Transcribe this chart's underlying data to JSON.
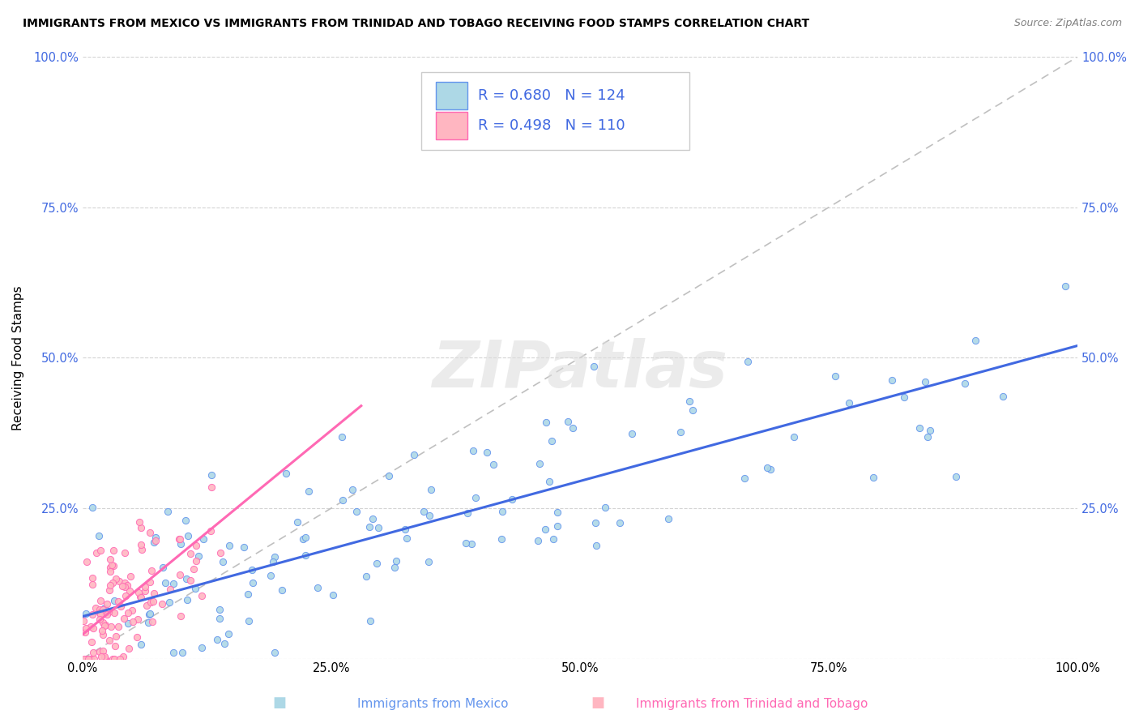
{
  "title": "IMMIGRANTS FROM MEXICO VS IMMIGRANTS FROM TRINIDAD AND TOBAGO RECEIVING FOOD STAMPS CORRELATION CHART",
  "source": "Source: ZipAtlas.com",
  "xlabel_mexico": "Immigrants from Mexico",
  "xlabel_tt": "Immigrants from Trinidad and Tobago",
  "ylabel": "Receiving Food Stamps",
  "watermark": "ZIPatlas",
  "legend_r_mexico": "R = 0.680",
  "legend_n_mexico": "N = 124",
  "legend_r_tt": "R = 0.498",
  "legend_n_tt": "N = 110",
  "color_mexico_fill": "#ADD8E6",
  "color_mexico_edge": "#6495ED",
  "color_tt_fill": "#FFB6C1",
  "color_tt_edge": "#FF69B4",
  "color_line_mexico": "#4169E1",
  "color_line_tt": "#FF69B4",
  "color_text_blue": "#4169E1",
  "color_grid": "#D3D3D3",
  "color_diag": "#C0C0C0",
  "xlim": [
    0.0,
    1.0
  ],
  "ylim": [
    0.0,
    1.0
  ],
  "xticks": [
    0.0,
    0.25,
    0.5,
    0.75,
    1.0
  ],
  "yticks": [
    0.0,
    0.25,
    0.5,
    0.75,
    1.0
  ],
  "xtick_labels": [
    "0.0%",
    "25.0%",
    "50.0%",
    "75.0%",
    "100.0%"
  ],
  "ytick_labels_left": [
    "",
    "25.0%",
    "50.0%",
    "75.0%",
    "100.0%"
  ],
  "ytick_labels_right": [
    "",
    "25.0%",
    "50.0%",
    "75.0%",
    "100.0%"
  ],
  "mexico_trend_x": [
    0.0,
    1.0
  ],
  "mexico_trend_y": [
    0.07,
    0.52
  ],
  "tt_trend_x": [
    0.0,
    0.28
  ],
  "tt_trend_y": [
    0.04,
    0.42
  ]
}
